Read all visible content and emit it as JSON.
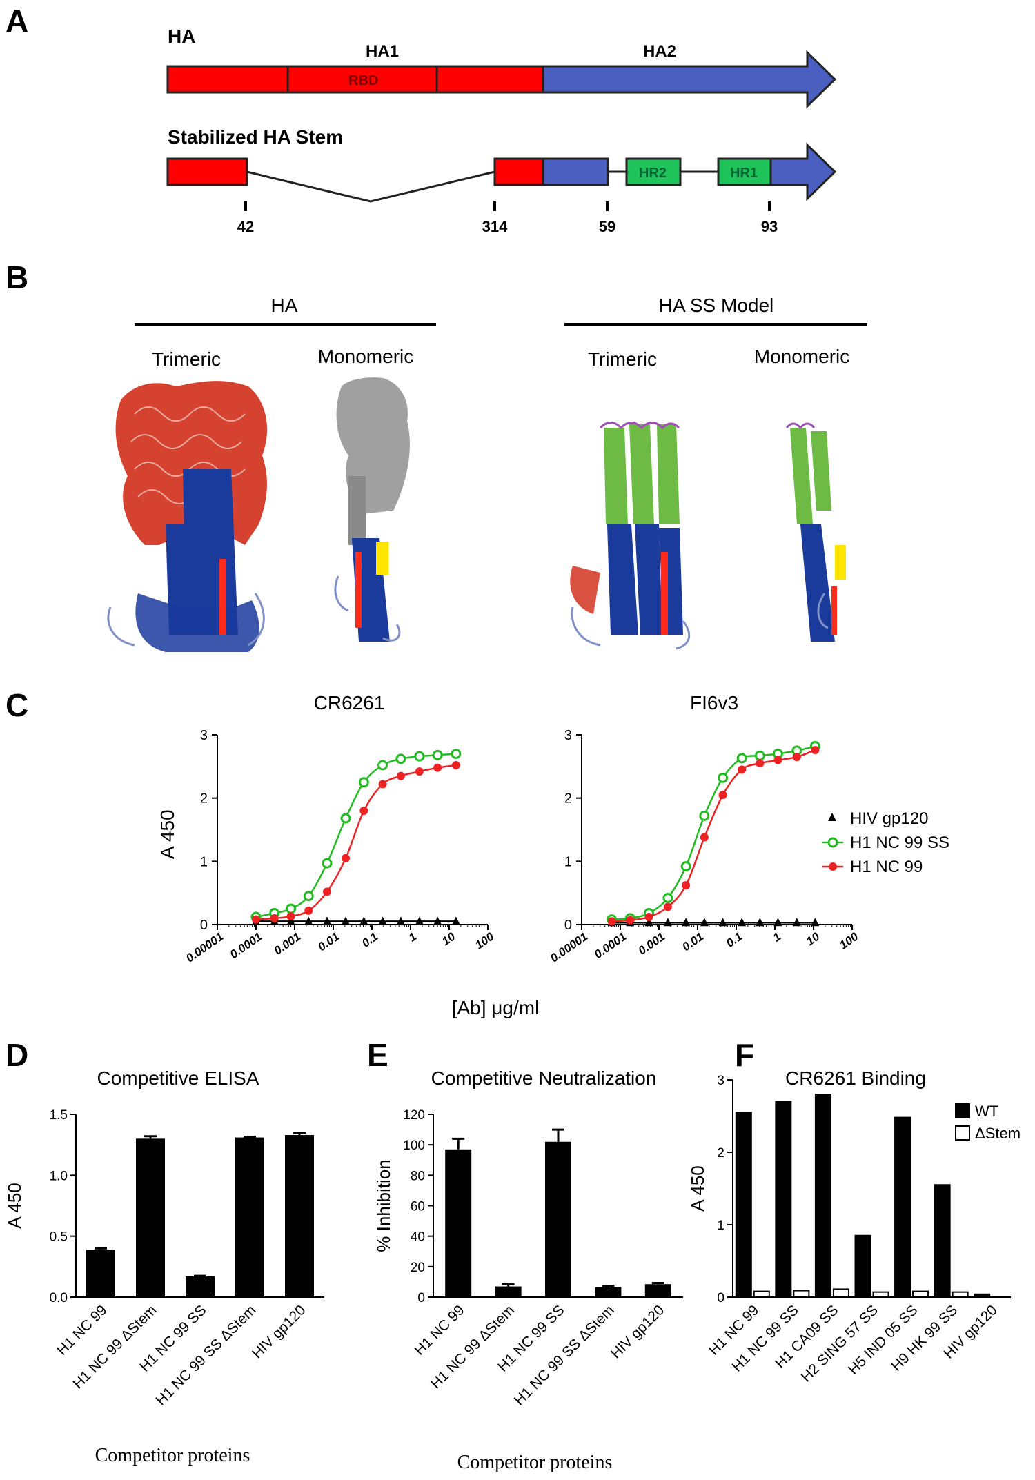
{
  "panels": {
    "A": "A",
    "B": "B",
    "C": "C",
    "D": "D",
    "E": "E",
    "F": "F"
  },
  "panel_a": {
    "ha_title": "HA",
    "ha1_label": "HA1",
    "ha2_label": "HA2",
    "rbd_label": "RBD",
    "stem_title": "Stabilized HA Stem",
    "hr2_label": "HR2",
    "hr1_label": "HR1",
    "positions": [
      "42",
      "314",
      "59",
      "93"
    ],
    "colors": {
      "ha1": "#ff0000",
      "ha2": "#4a5fbf",
      "hr": "#1ec45a"
    }
  },
  "panel_b": {
    "left_heading": "HA",
    "right_heading": "HA SS Model",
    "labels": [
      "Trimeric",
      "Monomeric",
      "Trimeric",
      "Monomeric"
    ],
    "colors": {
      "head": "#d2321e",
      "stem_helix": "#1a3a9c",
      "ss_helix": "#6dbb45",
      "linker": "#a050b4",
      "gray": "#a0a0a0",
      "yellow": "#ffe600"
    }
  },
  "panel_c": {
    "x_axis_label": "[Ab]  μg/ml",
    "legend": [
      "HIV gp120",
      "H1 NC 99 SS",
      "H1 NC 99"
    ]
  },
  "chart_data": [
    {
      "type": "line",
      "title": "CR6261",
      "xlabel": "",
      "ylabel": "A 450",
      "x_scale": "log",
      "xlim": [
        1e-05,
        100
      ],
      "ylim": [
        0,
        3
      ],
      "x_ticks": [
        "0.00001",
        "0.0001",
        "0.001",
        "0.01",
        "0.1",
        "1",
        "10",
        "100"
      ],
      "y_ticks": [
        "0",
        "1",
        "2",
        "3"
      ],
      "x": [
        0.0001,
        0.0003,
        0.0008,
        0.0023,
        0.0069,
        0.021,
        0.062,
        0.19,
        0.56,
        1.7,
        5,
        15
      ],
      "series": [
        {
          "name": "HIV gp120",
          "color": "#000000",
          "marker": "triangle",
          "values": [
            0.05,
            0.05,
            0.05,
            0.05,
            0.05,
            0.05,
            0.05,
            0.05,
            0.05,
            0.05,
            0.05,
            0.05
          ]
        },
        {
          "name": "H1 NC 99 SS",
          "color": "#22bb22",
          "marker": "open-circle",
          "values": [
            0.12,
            0.18,
            0.25,
            0.45,
            0.97,
            1.68,
            2.25,
            2.52,
            2.62,
            2.66,
            2.68,
            2.7
          ]
        },
        {
          "name": "H1 NC 99",
          "color": "#ee2222",
          "marker": "filled-circle",
          "values": [
            0.08,
            0.1,
            0.13,
            0.22,
            0.52,
            1.05,
            1.8,
            2.22,
            2.35,
            2.42,
            2.48,
            2.52
          ]
        }
      ]
    },
    {
      "type": "line",
      "title": "FI6v3",
      "xlabel": "",
      "ylabel": "",
      "x_scale": "log",
      "xlim": [
        1e-05,
        100
      ],
      "ylim": [
        0,
        3
      ],
      "x_ticks": [
        "0.00001",
        "0.0001",
        "0.001",
        "0.01",
        "0.1",
        "1",
        "10",
        "100"
      ],
      "y_ticks": [
        "0",
        "1",
        "2",
        "3"
      ],
      "x": [
        6e-05,
        0.00018,
        0.00055,
        0.0017,
        0.005,
        0.015,
        0.045,
        0.14,
        0.41,
        1.2,
        3.7,
        11
      ],
      "series": [
        {
          "name": "HIV gp120",
          "color": "#000000",
          "marker": "triangle",
          "values": [
            0.03,
            0.03,
            0.03,
            0.03,
            0.03,
            0.03,
            0.03,
            0.03,
            0.03,
            0.03,
            0.03,
            0.03
          ]
        },
        {
          "name": "H1 NC 99 SS",
          "color": "#22bb22",
          "marker": "open-circle",
          "values": [
            0.08,
            0.1,
            0.18,
            0.42,
            0.92,
            1.72,
            2.32,
            2.63,
            2.67,
            2.7,
            2.75,
            2.82
          ]
        },
        {
          "name": "H1 NC 99",
          "color": "#ee2222",
          "marker": "filled-circle",
          "values": [
            0.05,
            0.07,
            0.12,
            0.28,
            0.62,
            1.38,
            2.05,
            2.45,
            2.55,
            2.6,
            2.65,
            2.76
          ]
        }
      ]
    },
    {
      "type": "bar",
      "title": "Competitive ELISA",
      "xlabel": "Competitor  proteins",
      "ylabel": "A 450",
      "ylim": [
        0,
        1.5
      ],
      "y_ticks": [
        "0.0",
        "0.5",
        "1.0",
        "1.5"
      ],
      "categories": [
        "H1 NC 99",
        "H1 NC 99 ΔStem",
        "H1 NC 99 SS",
        "H1 NC 99 SS ΔStem",
        "HIV gp120"
      ],
      "values": [
        0.39,
        1.3,
        0.17,
        1.31,
        1.33
      ],
      "errors": [
        0.01,
        0.02,
        0.005,
        0.005,
        0.02
      ]
    },
    {
      "type": "bar",
      "title": "Competitive  Neutralization",
      "xlabel": "Competitor  proteins",
      "ylabel": "% Inhibition",
      "ylim": [
        0,
        120
      ],
      "y_ticks": [
        "0",
        "20",
        "40",
        "60",
        "80",
        "100",
        "120"
      ],
      "categories": [
        "H1 NC 99",
        "H1 NC 99 ΔStem",
        "H1 NC 99 SS",
        "H1 NC 99 SS ΔStem",
        "HIV gp120"
      ],
      "values": [
        97,
        7,
        102,
        6.5,
        8.5
      ],
      "errors": [
        7,
        1.5,
        8,
        1,
        0.8
      ]
    },
    {
      "type": "bar",
      "title": "CR6261 Binding",
      "xlabel": "",
      "ylabel": "A 450",
      "ylim": [
        0,
        3
      ],
      "y_ticks": [
        "0",
        "1",
        "2",
        "3"
      ],
      "categories": [
        "H1 NC 99",
        "H1 NC 99 SS",
        "H1 CA09 SS",
        "H2 SING 57 SS",
        "H5 IND 05 SS",
        "H9 HK 99 SS",
        "HIV gp120"
      ],
      "legend": "top-right",
      "series": [
        {
          "name": "WT",
          "values": [
            2.55,
            2.7,
            2.8,
            0.85,
            2.48,
            1.55,
            0.04
          ]
        },
        {
          "name": "ΔStem",
          "values": [
            0.08,
            0.09,
            0.11,
            0.07,
            0.08,
            0.07,
            0.0
          ]
        }
      ]
    }
  ]
}
